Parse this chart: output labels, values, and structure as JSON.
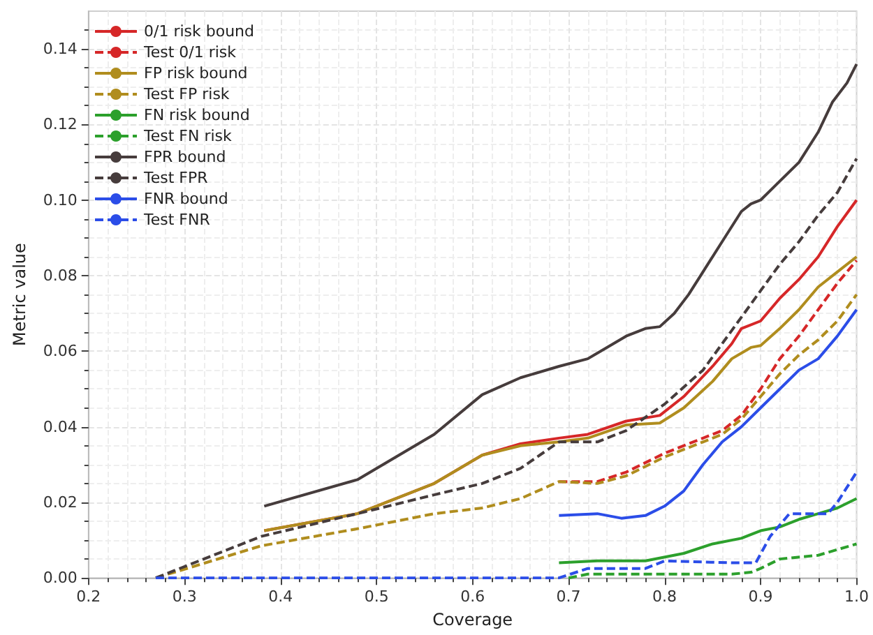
{
  "chart_data": {
    "type": "line",
    "xlabel": "Coverage",
    "ylabel": "Metric value",
    "xlim": [
      0.2,
      1.0
    ],
    "ylim": [
      0,
      0.15
    ],
    "xticks": [
      {
        "value": 0.2,
        "label": "0.2"
      },
      {
        "value": 0.3,
        "label": "0.3"
      },
      {
        "value": 0.4,
        "label": "0.4"
      },
      {
        "value": 0.5,
        "label": "0.5"
      },
      {
        "value": 0.6,
        "label": "0.6"
      },
      {
        "value": 0.7,
        "label": "0.7"
      },
      {
        "value": 0.8,
        "label": "0.8"
      },
      {
        "value": 0.9,
        "label": "0.9"
      },
      {
        "value": 1.0,
        "label": "1.0"
      }
    ],
    "yticks": [
      {
        "value": 0,
        "label": "0.00"
      },
      {
        "value": 0.02,
        "label": "0.02"
      },
      {
        "value": 0.04,
        "label": "0.04"
      },
      {
        "value": 0.06,
        "label": "0.06"
      },
      {
        "value": 0.08,
        "label": "0.08"
      },
      {
        "value": 0.1,
        "label": "0.10"
      },
      {
        "value": 0.12,
        "label": "0.12"
      },
      {
        "value": 0.14,
        "label": "0.14"
      }
    ],
    "grid": true,
    "legend": "top left",
    "marker": "none",
    "series": [
      {
        "name": "0/1 risk bound",
        "color": "#d62728",
        "line_style": "solid",
        "x": [
          0.383,
          0.48,
          0.56,
          0.61,
          0.65,
          0.69,
          0.72,
          0.76,
          0.795,
          0.82,
          0.85,
          0.87,
          0.88,
          0.9,
          0.92,
          0.94,
          0.96,
          0.98,
          1.0
        ],
        "values": [
          0.0125,
          0.017,
          0.025,
          0.0325,
          0.0355,
          0.037,
          0.038,
          0.0415,
          0.043,
          0.048,
          0.056,
          0.062,
          0.066,
          0.068,
          0.074,
          0.079,
          0.085,
          0.093,
          0.1
        ]
      },
      {
        "name": "Test 0/1 risk",
        "color": "#d62728",
        "line_style": "dashed",
        "x": [
          0.69,
          0.73,
          0.76,
          0.8,
          0.84,
          0.86,
          0.88,
          0.9,
          0.92,
          0.94,
          0.96,
          0.98,
          1.0
        ],
        "values": [
          0.0255,
          0.0255,
          0.028,
          0.033,
          0.037,
          0.039,
          0.043,
          0.05,
          0.058,
          0.064,
          0.071,
          0.078,
          0.084
        ]
      },
      {
        "name": "FP risk bound",
        "color": "#b08d1e",
        "line_style": "solid",
        "x": [
          0.383,
          0.48,
          0.56,
          0.61,
          0.65,
          0.69,
          0.72,
          0.76,
          0.795,
          0.82,
          0.85,
          0.87,
          0.89,
          0.9,
          0.92,
          0.94,
          0.96,
          0.98,
          1.0
        ],
        "values": [
          0.0125,
          0.017,
          0.025,
          0.0325,
          0.035,
          0.036,
          0.037,
          0.0405,
          0.041,
          0.045,
          0.052,
          0.058,
          0.061,
          0.0615,
          0.066,
          0.071,
          0.077,
          0.081,
          0.085
        ]
      },
      {
        "name": "Test FP risk",
        "color": "#b08d1e",
        "line_style": "dashed",
        "x": [
          0.27,
          0.38,
          0.48,
          0.56,
          0.61,
          0.65,
          0.69,
          0.73,
          0.76,
          0.8,
          0.84,
          0.86,
          0.88,
          0.9,
          0.92,
          0.94,
          0.96,
          0.98,
          1.0
        ],
        "values": [
          0,
          0.0085,
          0.013,
          0.017,
          0.0185,
          0.021,
          0.0255,
          0.025,
          0.027,
          0.032,
          0.036,
          0.038,
          0.042,
          0.048,
          0.054,
          0.059,
          0.063,
          0.068,
          0.075
        ]
      },
      {
        "name": "FN risk bound",
        "color": "#2ca02c",
        "line_style": "solid",
        "x": [
          0.69,
          0.73,
          0.78,
          0.82,
          0.85,
          0.88,
          0.9,
          0.92,
          0.94,
          0.96,
          0.98,
          1.0
        ],
        "values": [
          0.004,
          0.0045,
          0.0045,
          0.0065,
          0.009,
          0.0105,
          0.0125,
          0.0135,
          0.0155,
          0.017,
          0.0185,
          0.021
        ]
      },
      {
        "name": "Test FN risk",
        "color": "#2ca02c",
        "line_style": "dashed",
        "x": [
          0.7,
          0.72,
          0.87,
          0.89,
          0.9,
          0.92,
          0.96,
          0.98,
          1.0
        ],
        "values": [
          0,
          0.001,
          0.001,
          0.0015,
          0.0025,
          0.005,
          0.006,
          0.0075,
          0.009
        ]
      },
      {
        "name": "FPR bound",
        "color": "#463c3c",
        "line_style": "solid",
        "x": [
          0.383,
          0.48,
          0.56,
          0.61,
          0.65,
          0.69,
          0.72,
          0.76,
          0.78,
          0.795,
          0.81,
          0.825,
          0.84,
          0.86,
          0.88,
          0.89,
          0.9,
          0.92,
          0.94,
          0.96,
          0.975,
          0.99,
          1.0
        ],
        "values": [
          0.019,
          0.026,
          0.038,
          0.0485,
          0.053,
          0.056,
          0.058,
          0.064,
          0.066,
          0.0665,
          0.07,
          0.075,
          0.081,
          0.089,
          0.097,
          0.099,
          0.1,
          0.105,
          0.11,
          0.118,
          0.126,
          0.131,
          0.136
        ]
      },
      {
        "name": "Test FPR",
        "color": "#463c3c",
        "line_style": "dashed",
        "x": [
          0.27,
          0.38,
          0.48,
          0.56,
          0.61,
          0.65,
          0.69,
          0.73,
          0.76,
          0.8,
          0.84,
          0.86,
          0.88,
          0.9,
          0.92,
          0.94,
          0.96,
          0.98,
          1.0
        ],
        "values": [
          0,
          0.011,
          0.017,
          0.022,
          0.025,
          0.029,
          0.036,
          0.036,
          0.039,
          0.046,
          0.055,
          0.062,
          0.069,
          0.076,
          0.083,
          0.089,
          0.096,
          0.102,
          0.111
        ]
      },
      {
        "name": "FNR bound",
        "color": "#2b4de8",
        "line_style": "solid",
        "x": [
          0.69,
          0.73,
          0.755,
          0.78,
          0.8,
          0.82,
          0.84,
          0.86,
          0.88,
          0.9,
          0.92,
          0.94,
          0.96,
          0.98,
          1.0
        ],
        "values": [
          0.0165,
          0.017,
          0.0158,
          0.0165,
          0.019,
          0.023,
          0.03,
          0.036,
          0.04,
          0.045,
          0.05,
          0.055,
          0.058,
          0.064,
          0.071
        ]
      },
      {
        "name": "Test FNR",
        "color": "#2b4de8",
        "line_style": "dashed",
        "x": [
          0.27,
          0.69,
          0.72,
          0.78,
          0.8,
          0.87,
          0.895,
          0.91,
          0.93,
          0.97,
          0.98,
          1.0
        ],
        "values": [
          0,
          0,
          0.0025,
          0.0025,
          0.0045,
          0.004,
          0.004,
          0.011,
          0.017,
          0.017,
          0.02,
          0.028
        ]
      }
    ]
  }
}
